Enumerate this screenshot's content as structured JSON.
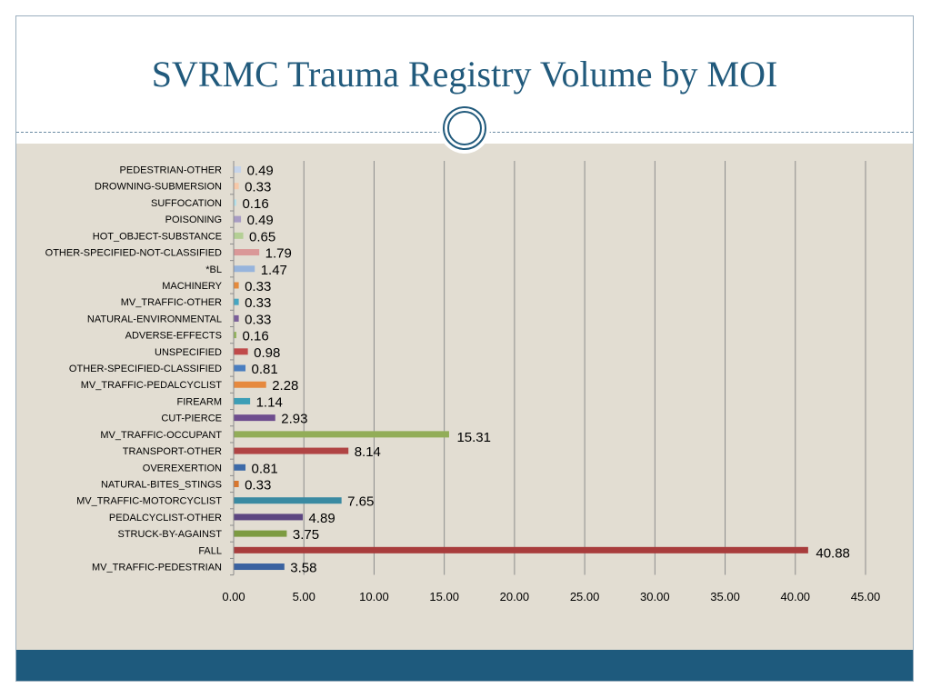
{
  "slide": {
    "title": "SVRMC Trauma Registry Volume by MOI",
    "colors": {
      "title": "#215a7c",
      "panel": "#e2ddd2",
      "footer": "#1e5a7d"
    }
  },
  "chart_data": {
    "type": "bar",
    "orientation": "horizontal",
    "categories": [
      "PEDESTRIAN-OTHER",
      "DROWNING-SUBMERSION",
      "SUFFOCATION",
      "POISONING",
      "HOT_OBJECT-SUBSTANCE",
      "OTHER-SPECIFIED-NOT-CLASSIFIED",
      "*BL",
      "MACHINERY",
      "MV_TRAFFIC-OTHER",
      "NATURAL-ENVIRONMENTAL",
      "ADVERSE-EFFECTS",
      "UNSPECIFIED",
      "OTHER-SPECIFIED-CLASSIFIED",
      "MV_TRAFFIC-PEDALCYCLIST",
      "FIREARM",
      "CUT-PIERCE",
      "MV_TRAFFIC-OCCUPANT",
      "TRANSPORT-OTHER",
      "OVEREXERTION",
      "NATURAL-BITES_STINGS",
      "MV_TRAFFIC-MOTORCYCLIST",
      "PEDALCYCLIST-OTHER",
      "STRUCK-BY-AGAINST",
      "FALL",
      "MV_TRAFFIC-PEDESTRIAN"
    ],
    "values": [
      0.49,
      0.33,
      0.16,
      0.49,
      0.65,
      1.79,
      1.47,
      0.33,
      0.33,
      0.33,
      0.16,
      0.98,
      0.81,
      2.28,
      1.14,
      2.93,
      15.31,
      8.14,
      0.81,
      0.33,
      7.65,
      4.89,
      3.75,
      40.88,
      3.58
    ],
    "value_labels": [
      "0.49",
      "0.33",
      "0.16",
      "0.49",
      "0.65",
      "1.79",
      "1.47",
      "0.33",
      "0.33",
      "0.33",
      "0.16",
      "0.98",
      "0.81",
      "2.28",
      "1.14",
      "2.93",
      "15.31",
      "8.14",
      "0.81",
      "0.33",
      "7.65",
      "4.89",
      "3.75",
      "40.88",
      "3.58"
    ],
    "colors": [
      "#c6d4ea",
      "#f7c8a8",
      "#b4e0ea",
      "#a89cc4",
      "#b4cf94",
      "#da9898",
      "#97b4dc",
      "#e58a3c",
      "#46a6c2",
      "#7a5e9a",
      "#94b45c",
      "#c04a4a",
      "#4a7ec0",
      "#e6893e",
      "#3c9eb6",
      "#6e4d8e",
      "#92ad58",
      "#b04444",
      "#3d6aa8",
      "#d9772e",
      "#3a8aa2",
      "#5d4681",
      "#7d9b42",
      "#a83c3c",
      "#3a62a0"
    ],
    "xlim": [
      0,
      45
    ],
    "x_ticks": [
      "0.00",
      "5.00",
      "10.00",
      "15.00",
      "20.00",
      "25.00",
      "30.00",
      "35.00",
      "40.00",
      "45.00"
    ],
    "grid": true
  }
}
